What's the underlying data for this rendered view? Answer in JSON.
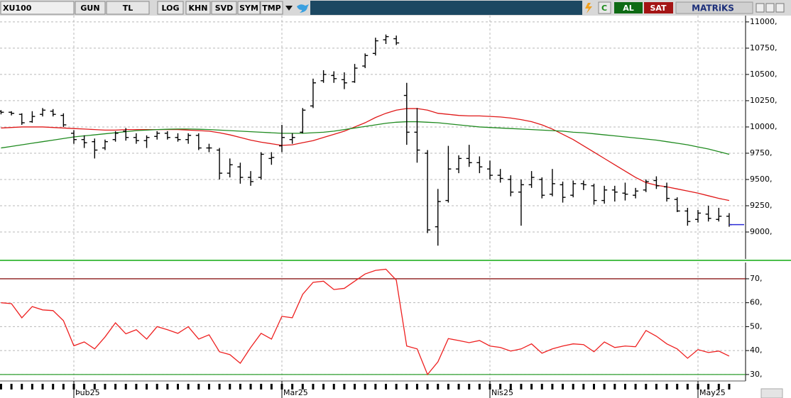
{
  "toolbar": {
    "symbol": "XU100",
    "buttons": [
      "GUN",
      "TL",
      "LOG",
      "KHN",
      "SVD",
      "SYM",
      "TMP"
    ],
    "refresh": "C",
    "buy": "AL",
    "sell": "SAT",
    "brand": "MATRiKS"
  },
  "chart_data": [
    {
      "type": "ohlc",
      "bar_color": "#000000",
      "last_price_color": "#2b2bd6",
      "grid": true,
      "categories": [
        null,
        null,
        null,
        null,
        null,
        null,
        null,
        "Þub25",
        null,
        null,
        null,
        null,
        null,
        null,
        null,
        null,
        null,
        null,
        null,
        null,
        null,
        null,
        null,
        null,
        null,
        null,
        null,
        "Mar25",
        null,
        null,
        null,
        null,
        null,
        null,
        null,
        null,
        null,
        null,
        null,
        null,
        null,
        null,
        null,
        null,
        null,
        null,
        null,
        "Nis25",
        null,
        null,
        null,
        null,
        null,
        null,
        null,
        null,
        null,
        null,
        null,
        null,
        null,
        null,
        null,
        null,
        null,
        null,
        null,
        "May25",
        null,
        null,
        null
      ],
      "open": [
        10150,
        10140,
        10120,
        10050,
        10120,
        10150,
        10110,
        9940,
        9880,
        9860,
        9800,
        9880,
        9960,
        9900,
        9870,
        9910,
        9940,
        9900,
        9880,
        9920,
        9800,
        9780,
        9560,
        9620,
        9520,
        9520,
        9700,
        9820,
        9880,
        9950,
        10200,
        10440,
        10490,
        10450,
        10430,
        10580,
        10700,
        10830,
        10840,
        10300,
        9950,
        9750,
        9050,
        9300,
        9600,
        9700,
        9660,
        9600,
        9540,
        9500,
        9380,
        9450,
        9500,
        9360,
        9450,
        9350,
        9460,
        9440,
        9300,
        9400,
        9370,
        9350,
        9400,
        9490,
        9430,
        9310,
        9200,
        9120,
        9170,
        9120,
        9150
      ],
      "high": [
        10160,
        10150,
        10130,
        10150,
        10180,
        10170,
        10130,
        9970,
        9920,
        9890,
        9880,
        9960,
        9990,
        9940,
        9920,
        9960,
        9960,
        9940,
        9940,
        9940,
        9840,
        9800,
        9700,
        9660,
        9580,
        9760,
        9760,
        10020,
        9940,
        10180,
        10460,
        10540,
        10530,
        10520,
        10600,
        10700,
        10850,
        10880,
        10870,
        10420,
        10180,
        9780,
        9410,
        9820,
        9730,
        9830,
        9720,
        9680,
        9600,
        9540,
        9500,
        9580,
        9520,
        9600,
        9480,
        9490,
        9490,
        9460,
        9440,
        9440,
        9470,
        9420,
        9500,
        9530,
        9470,
        9330,
        9230,
        9210,
        9250,
        9230,
        9180
      ],
      "low": [
        10120,
        10110,
        10020,
        10040,
        10100,
        10100,
        10000,
        9840,
        9800,
        9700,
        9780,
        9860,
        9870,
        9840,
        9800,
        9880,
        9880,
        9860,
        9840,
        9780,
        9760,
        9500,
        9520,
        9460,
        9440,
        9500,
        9640,
        9760,
        9840,
        9940,
        10180,
        10420,
        10420,
        10360,
        10420,
        10560,
        10680,
        10790,
        10780,
        9830,
        9660,
        8990,
        8870,
        9280,
        9560,
        9620,
        9560,
        9500,
        9470,
        9340,
        9060,
        9420,
        9320,
        9340,
        9280,
        9330,
        9400,
        9260,
        9270,
        9290,
        9300,
        9320,
        9380,
        9410,
        9290,
        9190,
        9060,
        9090,
        9100,
        9100,
        9050
      ],
      "close": [
        10140,
        10130,
        10040,
        10100,
        10160,
        10120,
        10020,
        9880,
        9850,
        9780,
        9860,
        9940,
        9900,
        9870,
        9900,
        9940,
        9900,
        9880,
        9920,
        9800,
        9800,
        9560,
        9640,
        9520,
        9480,
        9740,
        9710,
        9900,
        9900,
        10160,
        10420,
        10500,
        10460,
        10420,
        10560,
        10680,
        10820,
        10860,
        10800,
        9950,
        9780,
        9020,
        9290,
        9600,
        9700,
        9660,
        9620,
        9540,
        9510,
        9380,
        9450,
        9520,
        9350,
        9460,
        9330,
        9460,
        9450,
        9300,
        9400,
        9380,
        9360,
        9390,
        9480,
        9440,
        9320,
        9200,
        9100,
        9180,
        9130,
        9150,
        9070
      ],
      "overlays": [
        {
          "color": "#e01818",
          "values": [
            9990,
            9995,
            10000,
            10000,
            10000,
            9995,
            9990,
            9985,
            9980,
            9975,
            9970,
            9970,
            9975,
            9975,
            9975,
            9975,
            9975,
            9975,
            9970,
            9965,
            9960,
            9945,
            9925,
            9900,
            9875,
            9855,
            9840,
            9825,
            9830,
            9850,
            9870,
            9900,
            9930,
            9960,
            10000,
            10040,
            10090,
            10130,
            10160,
            10175,
            10175,
            10160,
            10130,
            10120,
            10110,
            10105,
            10105,
            10100,
            10095,
            10085,
            10070,
            10050,
            10020,
            9980,
            9930,
            9880,
            9820,
            9760,
            9700,
            9640,
            9580,
            9520,
            9470,
            9445,
            9430,
            9410,
            9390,
            9370,
            9345,
            9320,
            9300
          ]
        },
        {
          "color": "#1f8a1f",
          "values": [
            9800,
            9815,
            9830,
            9845,
            9860,
            9875,
            9890,
            9905,
            9915,
            9925,
            9935,
            9945,
            9955,
            9965,
            9970,
            9975,
            9978,
            9980,
            9980,
            9978,
            9975,
            9970,
            9965,
            9960,
            9955,
            9950,
            9945,
            9940,
            9940,
            9940,
            9945,
            9950,
            9960,
            9975,
            9990,
            10005,
            10020,
            10035,
            10045,
            10050,
            10050,
            10045,
            10040,
            10030,
            10020,
            10010,
            10000,
            9995,
            9990,
            9985,
            9980,
            9975,
            9970,
            9965,
            9960,
            9950,
            9945,
            9935,
            9925,
            9915,
            9905,
            9895,
            9885,
            9875,
            9860,
            9845,
            9830,
            9810,
            9790,
            9765,
            9740
          ]
        }
      ],
      "ylim": [
        8730,
        11060
      ],
      "yticks": [
        {
          "value": 9000,
          "label": "9000,"
        },
        {
          "value": 9250,
          "label": "9250,"
        },
        {
          "value": 9500,
          "label": "9500,"
        },
        {
          "value": 9750,
          "label": "9750,"
        },
        {
          "value": 10000,
          "label": "10000,"
        },
        {
          "value": 10250,
          "label": "10250,"
        },
        {
          "value": 10500,
          "label": "10500,"
        },
        {
          "value": 10750,
          "label": "10750,"
        },
        {
          "value": 11000,
          "label": "11000,"
        }
      ]
    },
    {
      "type": "line",
      "grid": true,
      "series": [
        {
          "color": "#ee2020",
          "values": [
            60,
            59.6,
            53.7,
            58.4,
            57,
            56.7,
            52.5,
            42,
            43.6,
            40.7,
            45.7,
            51.6,
            47,
            48.7,
            44.8,
            50,
            48.7,
            47.2,
            50,
            44.8,
            46.6,
            39.5,
            38.3,
            34.7,
            41.3,
            47.2,
            44.8,
            54.3,
            53.7,
            63.5,
            68.5,
            69,
            65.5,
            66,
            69,
            72,
            73.5,
            74,
            69.4,
            41.9,
            40.7,
            30,
            35.3,
            45,
            44.2,
            43.3,
            44.2,
            41.9,
            41.3,
            39.8,
            40.7,
            42.8,
            38.9,
            40.7,
            41.9,
            42.8,
            42.5,
            39.5,
            43.6,
            41.3,
            41.9,
            41.6,
            48.4,
            46,
            42.8,
            40.7,
            36.8,
            40.4,
            39.2,
            39.8,
            37.7
          ]
        }
      ],
      "levels": [
        {
          "value": 70,
          "color": "#8b1a1a"
        },
        {
          "value": 30,
          "color": "#2e9e2e"
        }
      ],
      "ylim": [
        27.3,
        76.8
      ],
      "yticks": [
        {
          "value": 30,
          "label": "30,"
        },
        {
          "value": 40,
          "label": "40,"
        },
        {
          "value": 50,
          "label": "50,"
        },
        {
          "value": 60,
          "label": "60,"
        },
        {
          "value": 70,
          "label": "70,"
        }
      ]
    }
  ]
}
